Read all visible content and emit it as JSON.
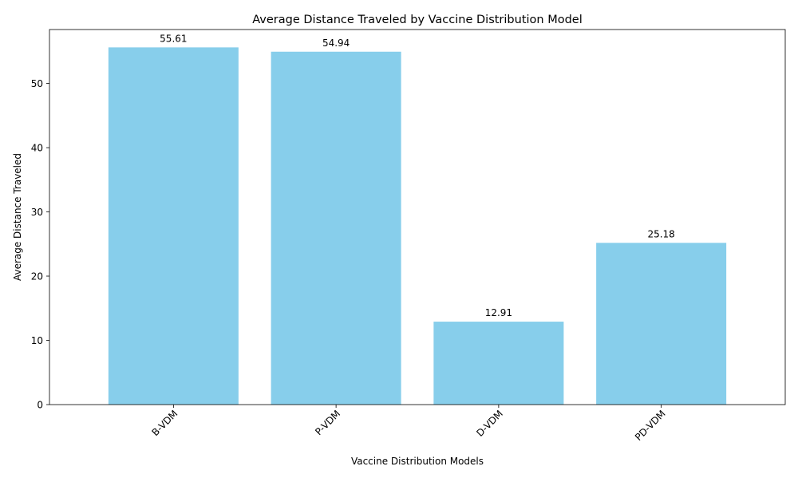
{
  "chart_data": {
    "type": "bar",
    "title": "Average Distance Traveled by Vaccine Distribution Model",
    "xlabel": "Vaccine Distribution Models",
    "ylabel": "Average Distance Traveled",
    "categories": [
      "B-VDM",
      "P-VDM",
      "D-VDM",
      "PD-VDM"
    ],
    "values": [
      55.61,
      54.94,
      12.91,
      25.18
    ],
    "data_labels": [
      "55.61",
      "54.94",
      "12.91",
      "25.18"
    ],
    "ylim": [
      0,
      58.39
    ],
    "yticks": [
      0,
      10,
      20,
      30,
      40,
      50
    ],
    "ytick_labels": [
      "0",
      "10",
      "20",
      "30",
      "40",
      "50"
    ],
    "bar_color": "#87ceeb",
    "grid": false,
    "legend": "none",
    "xtick_rotation_deg": 45
  }
}
